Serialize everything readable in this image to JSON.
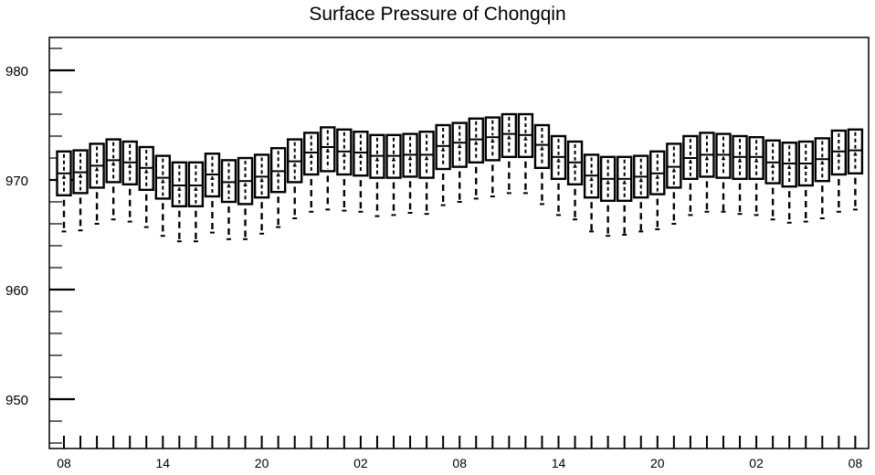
{
  "chart_data": {
    "type": "box",
    "title": "Surface Pressure of Chongqin",
    "xlabel": "",
    "ylabel": "",
    "ylim": [
      945.5,
      983
    ],
    "yticks": [
      950,
      960,
      970,
      980
    ],
    "grid": false,
    "x_tick_labels": [
      "08",
      "14",
      "20",
      "02",
      "08",
      "14",
      "20",
      "02",
      "08"
    ],
    "x_tick_label_indices": [
      0,
      6,
      12,
      18,
      24,
      30,
      36,
      42,
      48
    ],
    "n_categories": 49,
    "series": [
      {
        "median": [
          970.6,
          970.7,
          971.3,
          971.8,
          971.6,
          971.1,
          970.2,
          969.5,
          969.5,
          970.5,
          969.8,
          969.9,
          970.3,
          970.8,
          971.7,
          972.5,
          973.0,
          972.6,
          972.5,
          972.2,
          972.2,
          972.3,
          972.3,
          973.1,
          973.4,
          973.7,
          973.9,
          974.2,
          974.1,
          973.2,
          972.1,
          971.6,
          970.4,
          970.1,
          970.1,
          970.3,
          970.6,
          971.2,
          972.0,
          972.3,
          972.3,
          972.1,
          972.1,
          971.6,
          971.5,
          971.5,
          971.9,
          972.6,
          972.7
        ],
        "q1": [
          968.6,
          968.8,
          969.3,
          969.8,
          969.6,
          969.1,
          968.3,
          967.6,
          967.6,
          968.5,
          968.0,
          967.8,
          968.4,
          968.9,
          969.8,
          970.5,
          970.8,
          970.5,
          970.4,
          970.2,
          970.2,
          970.3,
          970.2,
          971.0,
          971.2,
          971.6,
          971.8,
          972.1,
          972.1,
          971.1,
          970.1,
          969.6,
          968.4,
          968.1,
          968.1,
          968.4,
          968.7,
          969.3,
          970.1,
          970.3,
          970.2,
          970.1,
          970.1,
          969.7,
          969.4,
          969.5,
          969.9,
          970.5,
          970.6
        ],
        "q3": [
          972.6,
          972.7,
          973.3,
          973.7,
          973.5,
          973.0,
          972.2,
          971.6,
          971.6,
          972.4,
          971.8,
          972.0,
          972.3,
          972.9,
          973.7,
          974.3,
          974.8,
          974.6,
          974.4,
          974.1,
          974.1,
          974.2,
          974.4,
          975.0,
          975.2,
          975.6,
          975.7,
          976.0,
          976.0,
          975.0,
          974.0,
          973.5,
          972.3,
          972.1,
          972.1,
          972.2,
          972.6,
          973.3,
          974.0,
          974.3,
          974.2,
          974.0,
          973.9,
          973.6,
          973.4,
          973.5,
          973.8,
          974.5,
          974.6
        ],
        "whisker_low": [
          965.3,
          965.4,
          966.0,
          966.4,
          966.2,
          965.7,
          964.9,
          964.4,
          964.4,
          965.2,
          964.6,
          964.6,
          965.1,
          965.7,
          966.5,
          967.1,
          967.3,
          967.2,
          967.1,
          966.7,
          966.8,
          967.0,
          966.9,
          967.7,
          968.0,
          968.3,
          968.5,
          968.8,
          968.8,
          967.8,
          966.8,
          966.4,
          965.3,
          964.9,
          965.0,
          965.3,
          965.5,
          966.0,
          966.8,
          967.1,
          967.1,
          966.9,
          966.8,
          966.4,
          966.1,
          966.2,
          966.5,
          967.1,
          967.3
        ]
      }
    ]
  }
}
